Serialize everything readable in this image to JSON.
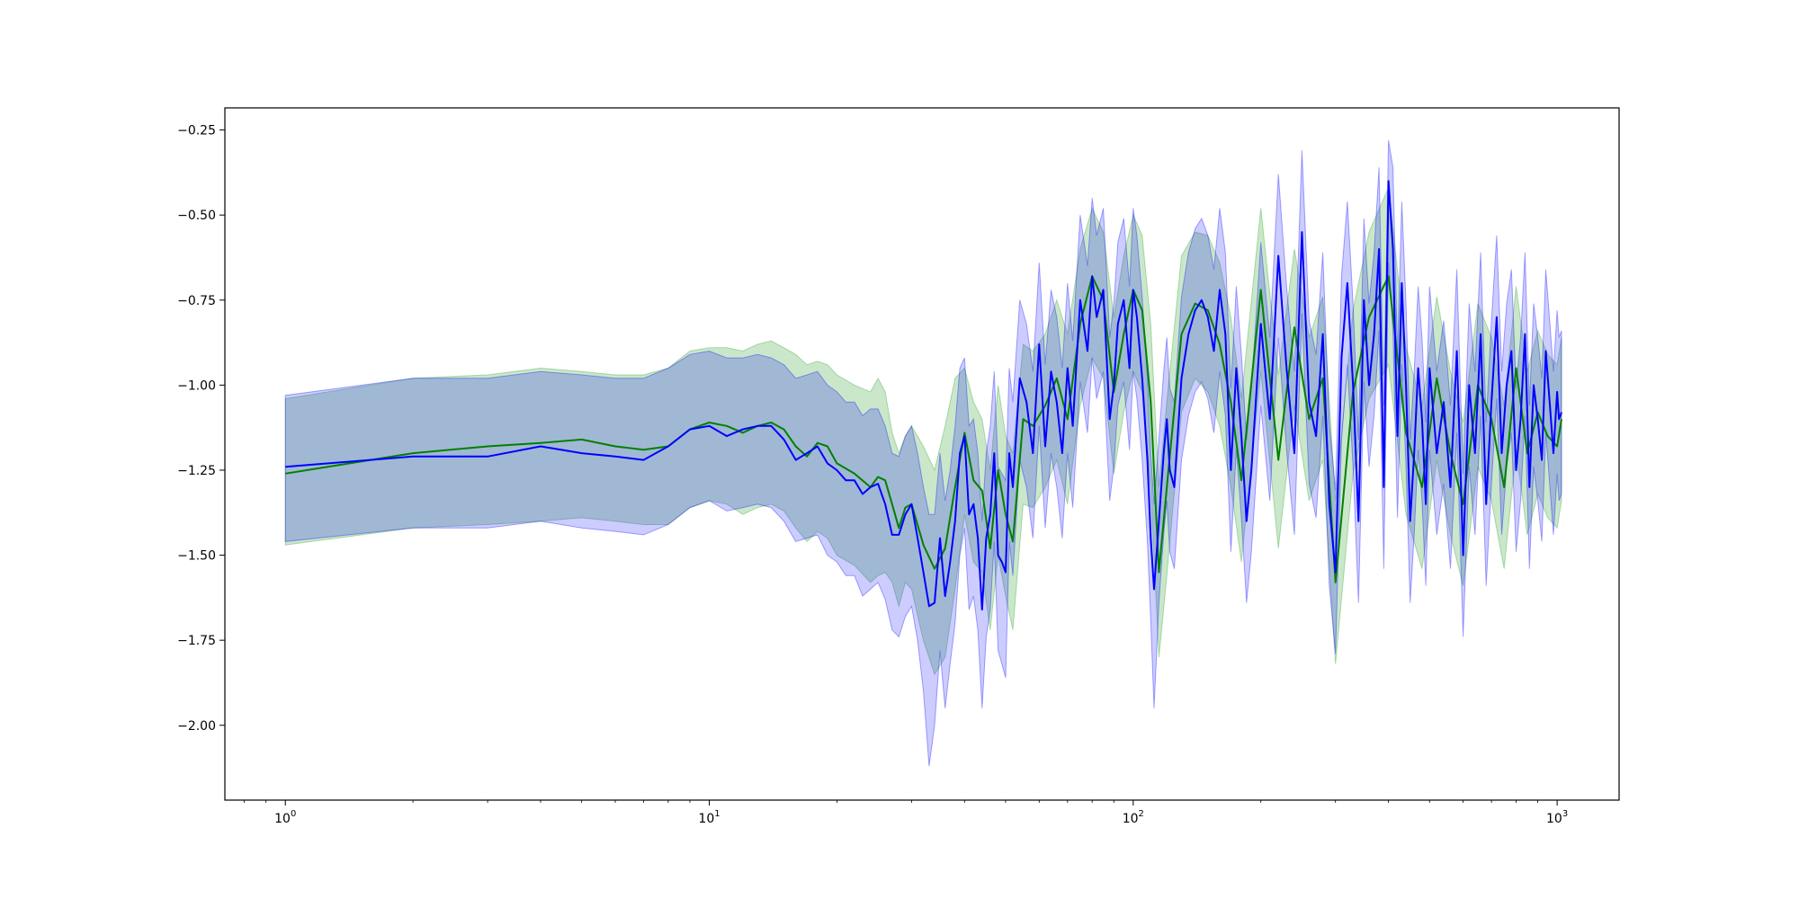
{
  "chart_data": {
    "type": "line",
    "x_scale": "log",
    "xlim": [
      0.72,
      1400
    ],
    "ylim": [
      -2.22,
      -0.185
    ],
    "grid": false,
    "title": "",
    "xlabel": "",
    "ylabel": "",
    "x_ticks": [
      {
        "value": 1,
        "base": "10",
        "exp": "0"
      },
      {
        "value": 10,
        "base": "10",
        "exp": "1"
      },
      {
        "value": 100,
        "base": "10",
        "exp": "2"
      },
      {
        "value": 1000,
        "base": "10",
        "exp": "3"
      }
    ],
    "y_ticks": [
      {
        "value": -0.25,
        "label": "−0.25"
      },
      {
        "value": -0.5,
        "label": "−0.50"
      },
      {
        "value": -0.75,
        "label": "−0.75"
      },
      {
        "value": -1.0,
        "label": "−1.00"
      },
      {
        "value": -1.25,
        "label": "−1.25"
      },
      {
        "value": -1.5,
        "label": "−1.50"
      },
      {
        "value": -1.75,
        "label": "−1.75"
      },
      {
        "value": -2.0,
        "label": "−2.00"
      }
    ],
    "series": [
      {
        "color": "#008000",
        "band_color": "#2ca02c",
        "band_opacity": 0.25,
        "x": [
          1,
          2,
          3,
          4,
          5,
          6,
          7,
          8,
          9,
          10,
          11,
          12,
          13,
          14,
          15,
          16,
          17,
          18,
          19,
          20,
          22,
          24,
          25,
          26,
          27,
          28,
          29,
          30,
          32,
          34,
          36,
          38,
          40,
          42,
          44,
          46,
          48,
          50,
          52,
          55,
          58,
          62,
          66,
          70,
          75,
          80,
          85,
          90,
          95,
          100,
          105,
          110,
          115,
          120,
          130,
          140,
          150,
          160,
          170,
          180,
          200,
          220,
          240,
          260,
          280,
          300,
          330,
          360,
          400,
          440,
          480,
          520,
          560,
          600,
          650,
          700,
          750,
          800,
          850,
          900,
          950,
          1000,
          1024
        ],
        "y": [
          -1.26,
          -1.2,
          -1.18,
          -1.17,
          -1.16,
          -1.18,
          -1.19,
          -1.18,
          -1.13,
          -1.11,
          -1.12,
          -1.14,
          -1.12,
          -1.11,
          -1.13,
          -1.18,
          -1.21,
          -1.17,
          -1.18,
          -1.23,
          -1.26,
          -1.3,
          -1.27,
          -1.28,
          -1.35,
          -1.42,
          -1.36,
          -1.35,
          -1.47,
          -1.54,
          -1.48,
          -1.3,
          -1.14,
          -1.28,
          -1.31,
          -1.48,
          -1.25,
          -1.38,
          -1.46,
          -1.1,
          -1.12,
          -1.06,
          -0.98,
          -1.1,
          -0.82,
          -0.68,
          -0.75,
          -1.02,
          -0.85,
          -0.72,
          -0.78,
          -1.05,
          -1.55,
          -1.3,
          -0.85,
          -0.76,
          -0.78,
          -0.88,
          -1.05,
          -1.28,
          -0.72,
          -1.22,
          -0.83,
          -1.1,
          -0.98,
          -1.58,
          -1.02,
          -0.8,
          -0.68,
          -1.14,
          -1.3,
          -0.98,
          -1.2,
          -1.35,
          -1.0,
          -1.1,
          -1.3,
          -0.95,
          -1.2,
          -1.08,
          -1.15,
          -1.18,
          -1.1
        ],
        "upper": [
          -1.04,
          -0.98,
          -0.97,
          -0.95,
          -0.96,
          -0.97,
          -0.97,
          -0.95,
          -0.9,
          -0.89,
          -0.89,
          -0.9,
          -0.88,
          -0.87,
          -0.89,
          -0.91,
          -0.94,
          -0.93,
          -0.94,
          -0.97,
          -1.0,
          -1.02,
          -0.98,
          -1.02,
          -1.14,
          -1.2,
          -1.15,
          -1.12,
          -1.18,
          -1.25,
          -1.12,
          -0.98,
          -0.95,
          -1.05,
          -1.1,
          -1.25,
          -1.0,
          -1.15,
          -1.2,
          -0.88,
          -0.9,
          -0.85,
          -0.75,
          -0.85,
          -0.6,
          -0.48,
          -0.55,
          -0.8,
          -0.62,
          -0.5,
          -0.56,
          -0.82,
          -1.3,
          -1.05,
          -0.62,
          -0.55,
          -0.56,
          -0.64,
          -0.8,
          -1.04,
          -0.48,
          -0.97,
          -0.6,
          -0.86,
          -0.74,
          -1.34,
          -0.78,
          -0.55,
          -0.42,
          -0.89,
          -1.06,
          -0.74,
          -0.96,
          -1.11,
          -0.76,
          -0.86,
          -1.06,
          -0.71,
          -0.96,
          -0.84,
          -0.91,
          -0.94,
          -0.86
        ],
        "lower": [
          -1.47,
          -1.42,
          -1.41,
          -1.4,
          -1.39,
          -1.4,
          -1.41,
          -1.41,
          -1.36,
          -1.34,
          -1.35,
          -1.38,
          -1.36,
          -1.35,
          -1.37,
          -1.42,
          -1.46,
          -1.43,
          -1.45,
          -1.5,
          -1.53,
          -1.58,
          -1.56,
          -1.55,
          -1.58,
          -1.65,
          -1.58,
          -1.6,
          -1.75,
          -1.85,
          -1.8,
          -1.6,
          -1.38,
          -1.52,
          -1.55,
          -1.72,
          -1.5,
          -1.62,
          -1.72,
          -1.35,
          -1.36,
          -1.3,
          -1.22,
          -1.35,
          -1.06,
          -0.92,
          -0.98,
          -1.26,
          -1.08,
          -0.96,
          -1.02,
          -1.3,
          -1.8,
          -1.56,
          -1.08,
          -0.98,
          -1.02,
          -1.12,
          -1.3,
          -1.52,
          -0.96,
          -1.48,
          -1.06,
          -1.34,
          -1.22,
          -1.82,
          -1.26,
          -1.04,
          -0.94,
          -1.38,
          -1.54,
          -1.22,
          -1.44,
          -1.59,
          -1.24,
          -1.34,
          -1.54,
          -1.19,
          -1.44,
          -1.32,
          -1.39,
          -1.42,
          -1.34
        ]
      },
      {
        "color": "#0000ff",
        "band_color": "#0000ff",
        "band_opacity": 0.2,
        "x": [
          1,
          2,
          3,
          4,
          5,
          6,
          7,
          8,
          9,
          10,
          11,
          12,
          13,
          14,
          15,
          16,
          17,
          18,
          19,
          20,
          21,
          22,
          23,
          24,
          25,
          26,
          27,
          28,
          29,
          30,
          31,
          32,
          33,
          34,
          35,
          36,
          37,
          38,
          39,
          40,
          41,
          42,
          43,
          44,
          45,
          46,
          47,
          48,
          49,
          50,
          51,
          52,
          54,
          56,
          58,
          60,
          62,
          64,
          66,
          68,
          70,
          72,
          75,
          78,
          80,
          82,
          85,
          88,
          90,
          92,
          95,
          98,
          100,
          102,
          105,
          108,
          110,
          112,
          115,
          118,
          120,
          122,
          125,
          130,
          135,
          140,
          145,
          150,
          155,
          160,
          165,
          170,
          175,
          180,
          185,
          190,
          200,
          210,
          220,
          230,
          240,
          250,
          260,
          270,
          280,
          290,
          300,
          310,
          320,
          330,
          340,
          350,
          360,
          370,
          380,
          390,
          400,
          410,
          420,
          430,
          440,
          450,
          460,
          470,
          480,
          490,
          500,
          520,
          540,
          560,
          580,
          600,
          620,
          640,
          660,
          680,
          700,
          720,
          740,
          760,
          780,
          800,
          820,
          840,
          860,
          880,
          900,
          920,
          940,
          960,
          980,
          1000,
          1010,
          1024
        ],
        "y": [
          -1.24,
          -1.21,
          -1.21,
          -1.18,
          -1.2,
          -1.21,
          -1.22,
          -1.18,
          -1.13,
          -1.12,
          -1.15,
          -1.13,
          -1.12,
          -1.12,
          -1.16,
          -1.22,
          -1.2,
          -1.18,
          -1.23,
          -1.25,
          -1.28,
          -1.28,
          -1.32,
          -1.3,
          -1.29,
          -1.35,
          -1.44,
          -1.44,
          -1.38,
          -1.35,
          -1.45,
          -1.55,
          -1.65,
          -1.64,
          -1.45,
          -1.62,
          -1.52,
          -1.4,
          -1.2,
          -1.15,
          -1.38,
          -1.35,
          -1.45,
          -1.66,
          -1.45,
          -1.38,
          -1.2,
          -1.5,
          -1.52,
          -1.55,
          -1.2,
          -1.3,
          -0.98,
          -1.05,
          -1.2,
          -0.88,
          -1.18,
          -0.96,
          -1.05,
          -1.2,
          -0.95,
          -1.12,
          -0.75,
          -0.9,
          -0.68,
          -0.8,
          -0.72,
          -1.1,
          -1.0,
          -0.82,
          -0.75,
          -0.95,
          -0.72,
          -0.8,
          -0.98,
          -1.22,
          -1.45,
          -1.6,
          -1.4,
          -1.2,
          -1.1,
          -1.25,
          -1.3,
          -0.98,
          -0.85,
          -0.78,
          -0.75,
          -0.8,
          -0.9,
          -0.72,
          -0.85,
          -1.25,
          -0.95,
          -1.15,
          -1.4,
          -1.25,
          -0.82,
          -1.1,
          -0.62,
          -0.95,
          -1.2,
          -0.55,
          -1.05,
          -1.15,
          -0.85,
          -1.35,
          -1.55,
          -0.92,
          -0.7,
          -1.0,
          -1.4,
          -0.75,
          -1.0,
          -0.85,
          -0.6,
          -1.3,
          -0.4,
          -0.6,
          -1.15,
          -0.7,
          -1.0,
          -1.4,
          -1.2,
          -0.95,
          -1.1,
          -1.35,
          -0.95,
          -1.2,
          -1.05,
          -1.3,
          -0.9,
          -1.5,
          -1.0,
          -1.2,
          -0.85,
          -1.35,
          -1.05,
          -0.8,
          -1.2,
          -1.0,
          -0.9,
          -1.25,
          -1.1,
          -0.85,
          -1.3,
          -1.0,
          -1.1,
          -1.22,
          -0.9,
          -1.05,
          -1.2,
          -1.02,
          -1.1,
          -1.08
        ],
        "upper": [
          -1.03,
          -0.98,
          -0.98,
          -0.96,
          -0.97,
          -0.98,
          -0.98,
          -0.95,
          -0.91,
          -0.9,
          -0.92,
          -0.92,
          -0.91,
          -0.92,
          -0.94,
          -0.98,
          -0.97,
          -0.96,
          -1.0,
          -1.02,
          -1.05,
          -1.05,
          -1.09,
          -1.07,
          -1.07,
          -1.12,
          -1.2,
          -1.21,
          -1.15,
          -1.12,
          -1.2,
          -1.3,
          -1.38,
          -1.38,
          -1.2,
          -1.34,
          -1.25,
          -1.12,
          -0.95,
          -0.92,
          -1.12,
          -1.1,
          -1.2,
          -1.4,
          -1.2,
          -1.12,
          -0.96,
          -1.24,
          -1.26,
          -1.28,
          -0.95,
          -1.05,
          -0.75,
          -0.82,
          -0.96,
          -0.64,
          -0.94,
          -0.72,
          -0.8,
          -0.95,
          -0.7,
          -0.87,
          -0.5,
          -0.65,
          -0.45,
          -0.56,
          -0.48,
          -0.86,
          -0.76,
          -0.58,
          -0.51,
          -0.71,
          -0.48,
          -0.56,
          -0.74,
          -0.98,
          -1.2,
          -1.35,
          -1.16,
          -0.96,
          -0.86,
          -1.01,
          -1.05,
          -0.74,
          -0.61,
          -0.54,
          -0.51,
          -0.56,
          -0.66,
          -0.48,
          -0.61,
          -1.01,
          -0.71,
          -0.91,
          -1.16,
          -1.01,
          -0.58,
          -0.86,
          -0.38,
          -0.71,
          -0.96,
          -0.31,
          -0.81,
          -0.91,
          -0.61,
          -1.11,
          -1.31,
          -0.68,
          -0.46,
          -0.76,
          -1.16,
          -0.51,
          -0.76,
          -0.61,
          -0.36,
          -1.06,
          -0.28,
          -0.36,
          -0.91,
          -0.46,
          -0.76,
          -1.16,
          -0.96,
          -0.71,
          -0.86,
          -1.11,
          -0.71,
          -0.96,
          -0.81,
          -1.06,
          -0.66,
          -1.26,
          -0.76,
          -0.96,
          -0.61,
          -1.11,
          -0.81,
          -0.56,
          -0.96,
          -0.76,
          -0.66,
          -1.01,
          -0.86,
          -0.61,
          -1.06,
          -0.76,
          -0.86,
          -0.98,
          -0.66,
          -0.81,
          -0.96,
          -0.78,
          -0.86,
          -0.84
        ],
        "lower": [
          -1.46,
          -1.42,
          -1.42,
          -1.4,
          -1.42,
          -1.43,
          -1.44,
          -1.41,
          -1.36,
          -1.34,
          -1.37,
          -1.36,
          -1.35,
          -1.36,
          -1.4,
          -1.46,
          -1.45,
          -1.44,
          -1.5,
          -1.52,
          -1.56,
          -1.56,
          -1.62,
          -1.6,
          -1.58,
          -1.63,
          -1.72,
          -1.74,
          -1.68,
          -1.65,
          -1.75,
          -1.9,
          -2.12,
          -2.0,
          -1.78,
          -1.95,
          -1.82,
          -1.7,
          -1.5,
          -1.42,
          -1.66,
          -1.62,
          -1.72,
          -1.95,
          -1.74,
          -1.66,
          -1.46,
          -1.78,
          -1.82,
          -1.86,
          -1.46,
          -1.56,
          -1.22,
          -1.3,
          -1.45,
          -1.12,
          -1.42,
          -1.2,
          -1.3,
          -1.45,
          -1.2,
          -1.36,
          -0.99,
          -1.14,
          -0.92,
          -1.04,
          -0.96,
          -1.34,
          -1.24,
          -1.06,
          -0.99,
          -1.19,
          -0.96,
          -1.04,
          -1.22,
          -1.46,
          -1.69,
          -1.95,
          -1.64,
          -1.44,
          -1.34,
          -1.49,
          -1.54,
          -1.22,
          -1.09,
          -1.02,
          -0.99,
          -1.04,
          -1.14,
          -0.96,
          -1.09,
          -1.49,
          -1.19,
          -1.39,
          -1.64,
          -1.49,
          -1.06,
          -1.34,
          -0.86,
          -1.19,
          -1.44,
          -0.79,
          -1.29,
          -1.39,
          -1.09,
          -1.59,
          -1.79,
          -1.16,
          -0.94,
          -1.24,
          -1.64,
          -0.99,
          -1.24,
          -1.09,
          -0.84,
          -1.54,
          -0.64,
          -0.84,
          -1.39,
          -0.94,
          -1.24,
          -1.64,
          -1.44,
          -1.19,
          -1.34,
          -1.59,
          -1.19,
          -1.44,
          -1.29,
          -1.54,
          -1.14,
          -1.74,
          -1.24,
          -1.44,
          -1.09,
          -1.59,
          -1.29,
          -1.04,
          -1.44,
          -1.24,
          -1.14,
          -1.49,
          -1.34,
          -1.09,
          -1.54,
          -1.24,
          -1.34,
          -1.46,
          -1.14,
          -1.29,
          -1.44,
          -1.26,
          -1.34,
          -1.32
        ]
      }
    ]
  }
}
